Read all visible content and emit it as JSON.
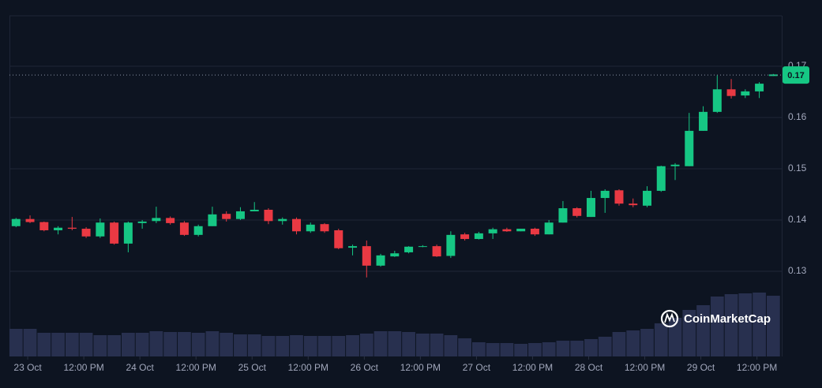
{
  "chart_data": {
    "type": "candlestick",
    "x": [
      -2.5,
      0.5,
      3.5,
      6.5,
      9.5,
      12.5,
      15.5,
      18.5,
      21.5,
      24.5,
      27.5,
      30.5,
      33.5,
      36.5,
      39.5,
      42.5,
      45.5,
      48.5,
      51.5,
      54.5,
      57.5,
      60.5,
      63.5,
      66.5,
      69.5,
      72.5,
      75.5,
      78.5,
      81.5,
      84.5,
      87.5,
      90.5,
      93.5,
      96.5,
      99.5,
      102.5,
      105.5,
      108.5,
      111.5,
      114.5,
      117.5,
      120.5,
      123.5,
      126.5,
      129.5,
      132.5,
      135.5,
      138.5,
      141.5,
      144.5,
      147.5,
      150.5,
      153.5,
      156.5,
      159.5
    ],
    "open": [
      0.1388,
      0.1402,
      0.1396,
      0.138,
      0.1385,
      0.1383,
      0.1368,
      0.1395,
      0.1354,
      0.1394,
      0.1398,
      0.1404,
      0.1395,
      0.1371,
      0.1388,
      0.1412,
      0.1402,
      0.1417,
      0.142,
      0.1398,
      0.1402,
      0.1378,
      0.1392,
      0.138,
      0.1346,
      0.1349,
      0.1311,
      0.1329,
      0.1337,
      0.1348,
      0.1349,
      0.133,
      0.1372,
      0.1363,
      0.1374,
      0.1382,
      0.1378,
      0.1383,
      0.1372,
      0.1395,
      0.1423,
      0.1406,
      0.1443,
      0.1458,
      0.1432,
      0.1428,
      0.1457,
      0.1505,
      0.1505,
      0.1574,
      0.1611,
      0.1655,
      0.1643,
      0.1651,
      0.1681
    ],
    "high": [
      0.1404,
      0.1409,
      0.1397,
      0.1388,
      0.1406,
      0.1386,
      0.1403,
      0.1397,
      0.1397,
      0.14,
      0.1426,
      0.1407,
      0.1398,
      0.1391,
      0.1426,
      0.1417,
      0.1425,
      0.1435,
      0.1423,
      0.1405,
      0.1405,
      0.1395,
      0.1394,
      0.1383,
      0.1352,
      0.136,
      0.1334,
      0.134,
      0.1349,
      0.1351,
      0.1352,
      0.1378,
      0.1375,
      0.1377,
      0.1385,
      0.1385,
      0.1383,
      0.1385,
      0.14,
      0.1437,
      0.1425,
      0.1457,
      0.146,
      0.146,
      0.1442,
      0.1466,
      0.1506,
      0.1511,
      0.1609,
      0.1622,
      0.1682,
      0.1675,
      0.1655,
      0.1669,
      0.1685
    ],
    "low": [
      0.1386,
      0.1394,
      0.1378,
      0.1372,
      0.138,
      0.1365,
      0.1365,
      0.1352,
      0.1337,
      0.1383,
      0.1394,
      0.1391,
      0.1369,
      0.1368,
      0.1388,
      0.1397,
      0.14,
      0.1417,
      0.1392,
      0.1391,
      0.1372,
      0.1375,
      0.1375,
      0.1343,
      0.1331,
      0.1288,
      0.1309,
      0.1328,
      0.1335,
      0.1347,
      0.1328,
      0.1326,
      0.136,
      0.1362,
      0.1363,
      0.1377,
      0.1378,
      0.1369,
      0.1372,
      0.1395,
      0.1405,
      0.1406,
      0.1414,
      0.1428,
      0.1425,
      0.1425,
      0.1455,
      0.1478,
      0.1505,
      0.1574,
      0.1609,
      0.1637,
      0.1638,
      0.1638,
      0.1681
    ],
    "close": [
      0.1402,
      0.1396,
      0.138,
      0.1385,
      0.1383,
      0.1368,
      0.1395,
      0.1354,
      0.1395,
      0.1397,
      0.1404,
      0.1394,
      0.1371,
      0.1388,
      0.1411,
      0.1402,
      0.1417,
      0.142,
      0.1398,
      0.1402,
      0.1378,
      0.1391,
      0.1378,
      0.1345,
      0.1349,
      0.1311,
      0.1331,
      0.1335,
      0.1348,
      0.1349,
      0.1329,
      0.1371,
      0.1363,
      0.1374,
      0.1382,
      0.1378,
      0.1383,
      0.1372,
      0.1395,
      0.1423,
      0.1408,
      0.1443,
      0.1457,
      0.1432,
      0.1429,
      0.1457,
      0.1505,
      0.1508,
      0.1574,
      0.1611,
      0.1655,
      0.1642,
      0.1651,
      0.1666,
      0.1684
    ],
    "volume": [
      35,
      35,
      30,
      30,
      30,
      30,
      27,
      27,
      30,
      30,
      32,
      31,
      31,
      30,
      32,
      30,
      28,
      28,
      26,
      26,
      27,
      26,
      26,
      26,
      27,
      29,
      32,
      32,
      31,
      29,
      29,
      27,
      23,
      18,
      17,
      17,
      16,
      17,
      18,
      20,
      20,
      22,
      25,
      31,
      33,
      35,
      42,
      49,
      59,
      65,
      76,
      79,
      80,
      81,
      77
    ],
    "vlim": [
      0,
      432
    ],
    "up_color": "#16c784",
    "down_color": "#ea3943",
    "volume_color": "#28304f",
    "xlim": [
      -3.9,
      161.3
    ],
    "xticks": [
      {
        "value": 0,
        "label": "23 Oct"
      },
      {
        "value": 12,
        "label": "12:00 PM"
      },
      {
        "value": 24,
        "label": "24 Oct"
      },
      {
        "value": 36,
        "label": "12:00 PM"
      },
      {
        "value": 48,
        "label": "25 Oct"
      },
      {
        "value": 60,
        "label": "12:00 PM"
      },
      {
        "value": 72,
        "label": "26 Oct"
      },
      {
        "value": 84,
        "label": "12:00 PM"
      },
      {
        "value": 96,
        "label": "27 Oct"
      },
      {
        "value": 108,
        "label": "12:00 PM"
      },
      {
        "value": 120,
        "label": "28 Oct"
      },
      {
        "value": 132,
        "label": "12:00 PM"
      },
      {
        "value": 144,
        "label": "29 Oct"
      },
      {
        "value": 156,
        "label": "12:00 PM"
      }
    ],
    "ylim": [
      0.11338,
      0.17985
    ],
    "yticks": [
      0.13,
      0.14,
      0.15,
      0.16,
      0.17
    ],
    "grid": true,
    "last_price": {
      "value": 0.1683,
      "label": "0.17"
    },
    "watermark": "CoinMarketCap"
  }
}
